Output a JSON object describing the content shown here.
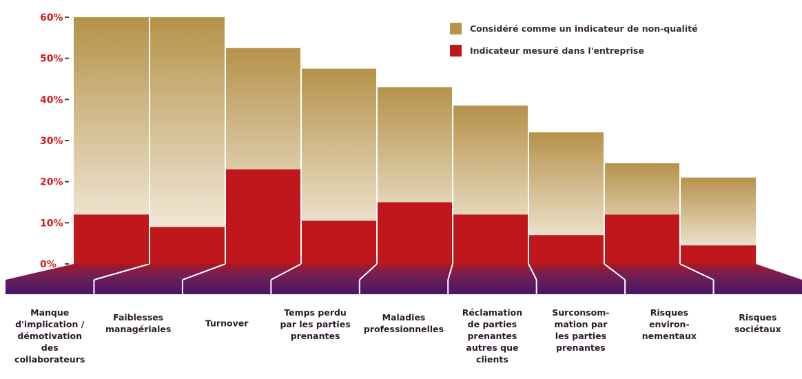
{
  "chart_data": {
    "type": "bar",
    "categories": [
      "Manque d'implication / démotivation des collaborateurs",
      "Faiblesses managériales",
      "Turnover",
      "Temps perdu par les parties prenantes",
      "Maladies professionnelles",
      "Réclamation de parties prenantes autres que clients",
      "Surconsommation par les parties prenantes",
      "Risques environnementaux",
      "Risques sociétaux"
    ],
    "category_lines": [
      [
        "Manque",
        "d'implication /",
        "démotivation",
        "des",
        "collaborateurs"
      ],
      [
        "Faiblesses",
        "managériales"
      ],
      [
        "Turnover"
      ],
      [
        "Temps perdu",
        "par les parties",
        "prenantes"
      ],
      [
        "Maladies",
        "professionnelles"
      ],
      [
        "Réclamation",
        "de parties",
        "prenantes",
        "autres que",
        "clients"
      ],
      [
        "Surconsom-",
        "mation par",
        "les parties",
        "prenantes"
      ],
      [
        "Risques",
        "environ-",
        "nementaux"
      ],
      [
        "Risques",
        "sociétaux"
      ]
    ],
    "series": [
      {
        "name": "Considéré comme un indicateur de non-qualité",
        "values": [
          60,
          60,
          52.5,
          47.5,
          43,
          38.5,
          32,
          24.5,
          21
        ]
      },
      {
        "name": "Indicateur mesuré dans l'entreprise",
        "values": [
          12,
          9,
          23,
          10.5,
          15,
          12,
          7,
          12,
          4.5
        ]
      }
    ],
    "ylim": [
      0,
      60
    ],
    "y_ticks": [
      0,
      10,
      20,
      30,
      40,
      50,
      60
    ],
    "y_tick_labels": [
      "0%",
      "10%",
      "20%",
      "30%",
      "40%",
      "50%",
      "60%"
    ],
    "legend_position": "top-right",
    "grid": false,
    "title": "",
    "xlabel": "",
    "ylabel": ""
  },
  "colors": {
    "gold_top": "#b6924a",
    "gold_bottom": "#fbf6ee",
    "red": "#c0171c",
    "tick_red": "#d11d1d",
    "purple_dark": "#4c1466",
    "purple_mid": "#6c1f58",
    "floor_red": "#a6182a"
  }
}
